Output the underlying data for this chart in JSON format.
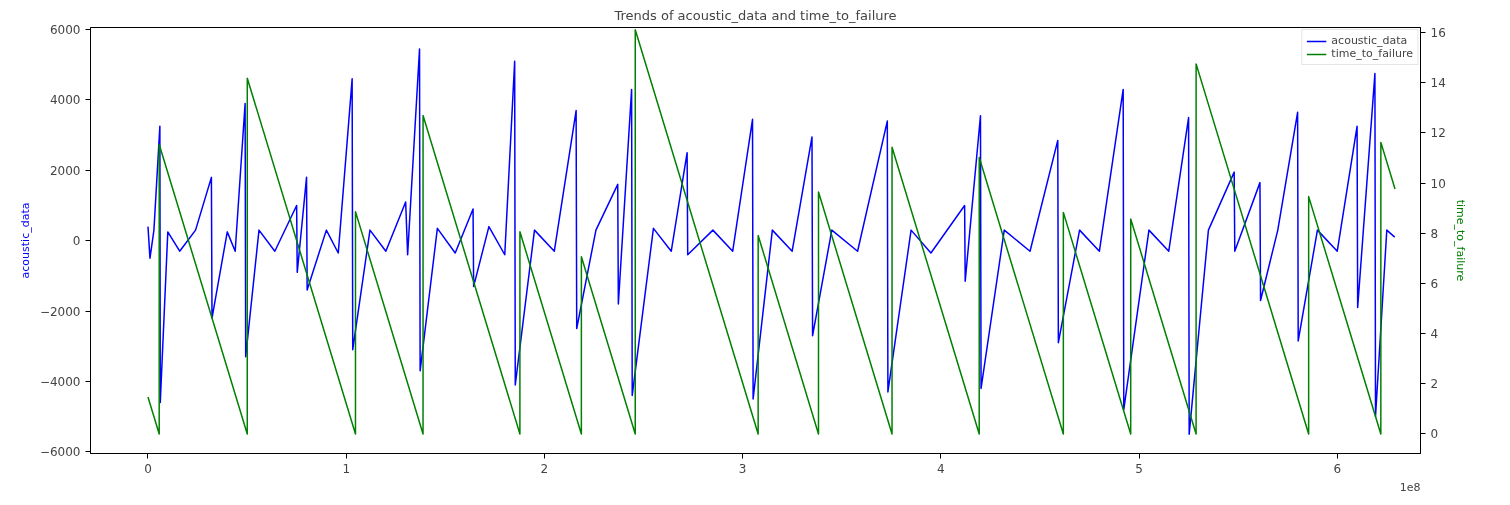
{
  "chart_data": {
    "type": "line",
    "title": "Trends of acoustic_data and time_to_failure",
    "ylabel": "acoustic_data",
    "y2label": "time_to_failure",
    "annotations": [
      "1e8"
    ],
    "xlim": [
      -0.29,
      6.42
    ],
    "xticks": [
      0,
      1,
      2,
      3,
      4,
      5,
      6
    ],
    "ylim": [
      -6050,
      6060
    ],
    "yticks": [
      {
        "value": -6000,
        "label": "−6000"
      },
      {
        "value": -4000,
        "label": "−4000"
      },
      {
        "value": -2000,
        "label": "−2000"
      },
      0,
      2000,
      4000,
      6000
    ],
    "y2lim": [
      -0.78,
      16.2
    ],
    "y2ticks": [
      0,
      2,
      4,
      6,
      8,
      10,
      12,
      14,
      16
    ],
    "grid": false,
    "legend": "top right",
    "series": [
      {
        "name": "acoustic_data",
        "color": "#0000ff",
        "x": [
          0,
          0.01,
          0.03,
          0.06,
          0.062,
          0.1,
          0.16,
          0.24,
          0.32,
          0.323,
          0.4,
          0.44,
          0.49,
          0.493,
          0.56,
          0.64,
          0.75,
          0.753,
          0.8,
          0.803,
          0.9,
          0.96,
          1.03,
          1.033,
          1.12,
          1.2,
          1.3,
          1.31,
          1.37,
          1.373,
          1.46,
          1.55,
          1.64,
          1.643,
          1.72,
          1.8,
          1.85,
          1.853,
          1.95,
          2.05,
          2.16,
          2.163,
          2.26,
          2.37,
          2.373,
          2.44,
          2.443,
          2.55,
          2.64,
          2.72,
          2.723,
          2.85,
          2.95,
          3.05,
          3.053,
          3.15,
          3.25,
          3.35,
          3.353,
          3.45,
          3.58,
          3.73,
          3.733,
          3.85,
          3.95,
          4.12,
          4.123,
          4.2,
          4.203,
          4.32,
          4.45,
          4.59,
          4.593,
          4.7,
          4.8,
          4.92,
          4.923,
          5.05,
          5.15,
          5.25,
          5.253,
          5.35,
          5.48,
          5.483,
          5.61,
          5.613,
          5.7,
          5.8,
          5.803,
          5.9,
          6.0,
          6.1,
          6.103,
          6.19,
          6.193,
          6.25,
          6.29
        ],
        "values": [
          400,
          -500,
          300,
          3250,
          -4600,
          250,
          -300,
          300,
          1800,
          -2200,
          250,
          -300,
          3900,
          -3300,
          300,
          -300,
          1000,
          -900,
          1800,
          -1400,
          300,
          -350,
          4600,
          -3100,
          300,
          -300,
          1100,
          -400,
          5450,
          -3700,
          350,
          -350,
          900,
          -1300,
          400,
          -400,
          5100,
          -4100,
          300,
          -300,
          3700,
          -2500,
          300,
          1600,
          -1800,
          4300,
          -4400,
          350,
          -300,
          2500,
          -400,
          300,
          -300,
          3450,
          -4500,
          300,
          -300,
          2950,
          -2700,
          300,
          -300,
          3400,
          -4300,
          300,
          -350,
          1000,
          -1150,
          3550,
          -4200,
          300,
          -300,
          2850,
          -2900,
          300,
          -300,
          4300,
          -4800,
          300,
          -300,
          3500,
          -5500,
          300,
          1950,
          -300,
          1650,
          -1700,
          300,
          3650,
          -2850,
          300,
          -300,
          3250,
          -1900,
          4750,
          -5000,
          300,
          100
        ]
      },
      {
        "name": "time_to_failure",
        "color": "#008000",
        "axis": "y2",
        "x": [
          0,
          0.0566,
          0.0567,
          0.5009,
          0.501,
          1.0468,
          1.0469,
          1.3877,
          1.3878,
          1.8764,
          1.8765,
          2.1865,
          2.1866,
          2.4583,
          2.4584,
          3.0784,
          3.0785,
          3.3828,
          3.3829,
          3.7538,
          3.7539,
          4.1937,
          4.1938,
          4.6181,
          4.6182,
          4.958,
          4.9581,
          5.2878,
          5.2879,
          5.8557,
          5.8558,
          6.2199,
          6.22,
          6.2915
        ],
        "values": [
          1.47,
          0,
          11.54,
          0,
          14.18,
          0,
          8.86,
          0,
          12.69,
          0,
          8.06,
          0,
          7.06,
          0,
          16.11,
          0,
          7.91,
          0,
          9.64,
          0,
          11.43,
          0,
          11.02,
          0,
          8.83,
          0,
          8.57,
          0,
          14.75,
          0,
          9.46,
          0,
          11.62,
          9.76
        ]
      }
    ]
  }
}
